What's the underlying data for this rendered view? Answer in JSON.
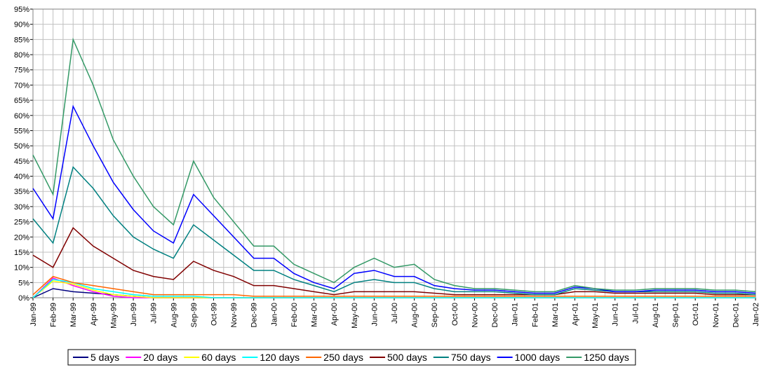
{
  "chart_data": {
    "type": "line",
    "categories": [
      "Jan-99",
      "Feb-99",
      "Mar-99",
      "Apr-99",
      "May-99",
      "Jun-99",
      "Jul-99",
      "Aug-99",
      "Sep-99",
      "Oct-99",
      "Nov-99",
      "Dec-99",
      "Jan-00",
      "Feb-00",
      "Mar-00",
      "Apr-00",
      "May-00",
      "Jun-00",
      "Jul-00",
      "Aug-00",
      "Sep-00",
      "Oct-00",
      "Nov-00",
      "Dec-00",
      "Jan-01",
      "Feb-01",
      "Mar-01",
      "Apr-01",
      "May-01",
      "Jun-01",
      "Jul-01",
      "Aug-01",
      "Sep-01",
      "Oct-01",
      "Nov-01",
      "Dec-01",
      "Jan-02"
    ],
    "ylim": [
      0,
      95
    ],
    "yticks": [
      {
        "value": 0,
        "label": "0%"
      },
      {
        "value": 5,
        "label": "5%"
      },
      {
        "value": 10,
        "label": "10%"
      },
      {
        "value": 15,
        "label": "15%"
      },
      {
        "value": 20,
        "label": "20%"
      },
      {
        "value": 25,
        "label": "25%"
      },
      {
        "value": 30,
        "label": "30%"
      },
      {
        "value": 35,
        "label": "35%"
      },
      {
        "value": 40,
        "label": "40%"
      },
      {
        "value": 45,
        "label": "45%"
      },
      {
        "value": 50,
        "label": "50%"
      },
      {
        "value": 55,
        "label": "55%"
      },
      {
        "value": 60,
        "label": "60%"
      },
      {
        "value": 65,
        "label": "65%"
      },
      {
        "value": 70,
        "label": "70%"
      },
      {
        "value": 75,
        "label": "75%"
      },
      {
        "value": 80,
        "label": "80%"
      },
      {
        "value": 85,
        "label": "85%"
      },
      {
        "value": 90,
        "label": "90%"
      },
      {
        "value": 95,
        "label": "95%"
      }
    ],
    "grid": true,
    "legend": "bottom",
    "series": [
      {
        "name": "5 days",
        "color": "#000080",
        "values": [
          0,
          3,
          2,
          1.5,
          1,
          0.5,
          0,
          0,
          0,
          0,
          0,
          0,
          0,
          0,
          0,
          0,
          0,
          0,
          0,
          0,
          0,
          0,
          0,
          0,
          0,
          0,
          0,
          0,
          0,
          0,
          0,
          0,
          0,
          0,
          0,
          0,
          0
        ]
      },
      {
        "name": "20 days",
        "color": "#ff00ff",
        "values": [
          0,
          6.5,
          4,
          2,
          0.5,
          0,
          0,
          0,
          0,
          0,
          0,
          0,
          0,
          0,
          0,
          0,
          0,
          0,
          0,
          0,
          0,
          0,
          0,
          0,
          0,
          0,
          0,
          0,
          0,
          0,
          0,
          0,
          0,
          0,
          0,
          0,
          0
        ]
      },
      {
        "name": "60 days",
        "color": "#ffff00",
        "values": [
          0,
          5.5,
          4.5,
          2.5,
          1,
          0.5,
          0,
          0,
          0,
          0,
          0,
          0,
          0,
          0,
          0,
          0,
          0,
          0,
          0,
          0,
          0,
          0,
          0,
          0,
          0,
          0,
          0,
          0,
          0,
          0,
          0,
          0,
          0,
          0,
          0,
          0,
          0
        ]
      },
      {
        "name": "120 days",
        "color": "#00ffff",
        "values": [
          0,
          6,
          5,
          3,
          2,
          1,
          0.5,
          0.5,
          0.5,
          0,
          0,
          0,
          0,
          0,
          0,
          0,
          0,
          0,
          0,
          0,
          0,
          0,
          0,
          0,
          0,
          0,
          0,
          0,
          0,
          0,
          0,
          0,
          0,
          0,
          0,
          0,
          0
        ]
      },
      {
        "name": "250 days",
        "color": "#ff6600",
        "values": [
          1,
          7,
          5,
          4,
          3,
          2,
          1,
          1,
          1,
          1,
          1,
          0.5,
          0.5,
          0.5,
          0.5,
          0.5,
          0.5,
          0.5,
          0.5,
          0.5,
          0.5,
          0.5,
          0.5,
          0.5,
          0.5,
          0.5,
          0.5,
          0.5,
          0.5,
          0.5,
          0.5,
          0.5,
          0.5,
          0.5,
          0.5,
          0.5,
          0.5
        ]
      },
      {
        "name": "500 days",
        "color": "#800000",
        "values": [
          14,
          10,
          23,
          17,
          13,
          9,
          7,
          6,
          12,
          9,
          7,
          4,
          4,
          3,
          2,
          1,
          2,
          2,
          2,
          2,
          1.5,
          1,
          1,
          1,
          1,
          1,
          1,
          2,
          2,
          1.5,
          1.5,
          1.5,
          1.5,
          1.5,
          1,
          1,
          1
        ]
      },
      {
        "name": "750 days",
        "color": "#008080",
        "values": [
          26,
          18,
          43,
          36,
          27,
          20,
          16,
          13,
          24,
          19,
          14,
          9,
          9,
          6,
          4,
          2,
          5,
          6,
          5,
          5,
          3,
          2,
          2,
          2,
          1.5,
          1,
          1,
          3,
          2.5,
          2,
          2,
          2,
          2,
          2,
          1.5,
          1.5,
          1
        ]
      },
      {
        "name": "1000 days",
        "color": "#0000ff",
        "values": [
          36,
          26,
          63,
          50,
          38,
          29,
          22,
          18,
          34,
          27,
          20,
          13,
          13,
          8,
          5,
          3,
          8,
          9,
          7,
          7,
          4,
          3,
          2.5,
          2.5,
          2,
          1.5,
          1.5,
          3.5,
          3,
          2,
          2,
          2.5,
          2.5,
          2.5,
          2,
          2,
          1.5
        ]
      },
      {
        "name": "1250 days",
        "color": "#339966",
        "values": [
          47,
          34,
          85,
          70,
          52,
          40,
          30,
          24,
          45,
          33,
          25,
          17,
          17,
          11,
          8,
          5,
          10,
          13,
          10,
          11,
          6,
          4,
          3,
          3,
          2.5,
          2,
          2,
          4,
          3,
          2.5,
          2.5,
          3,
          3,
          3,
          2.5,
          2.5,
          2
        ]
      }
    ]
  }
}
